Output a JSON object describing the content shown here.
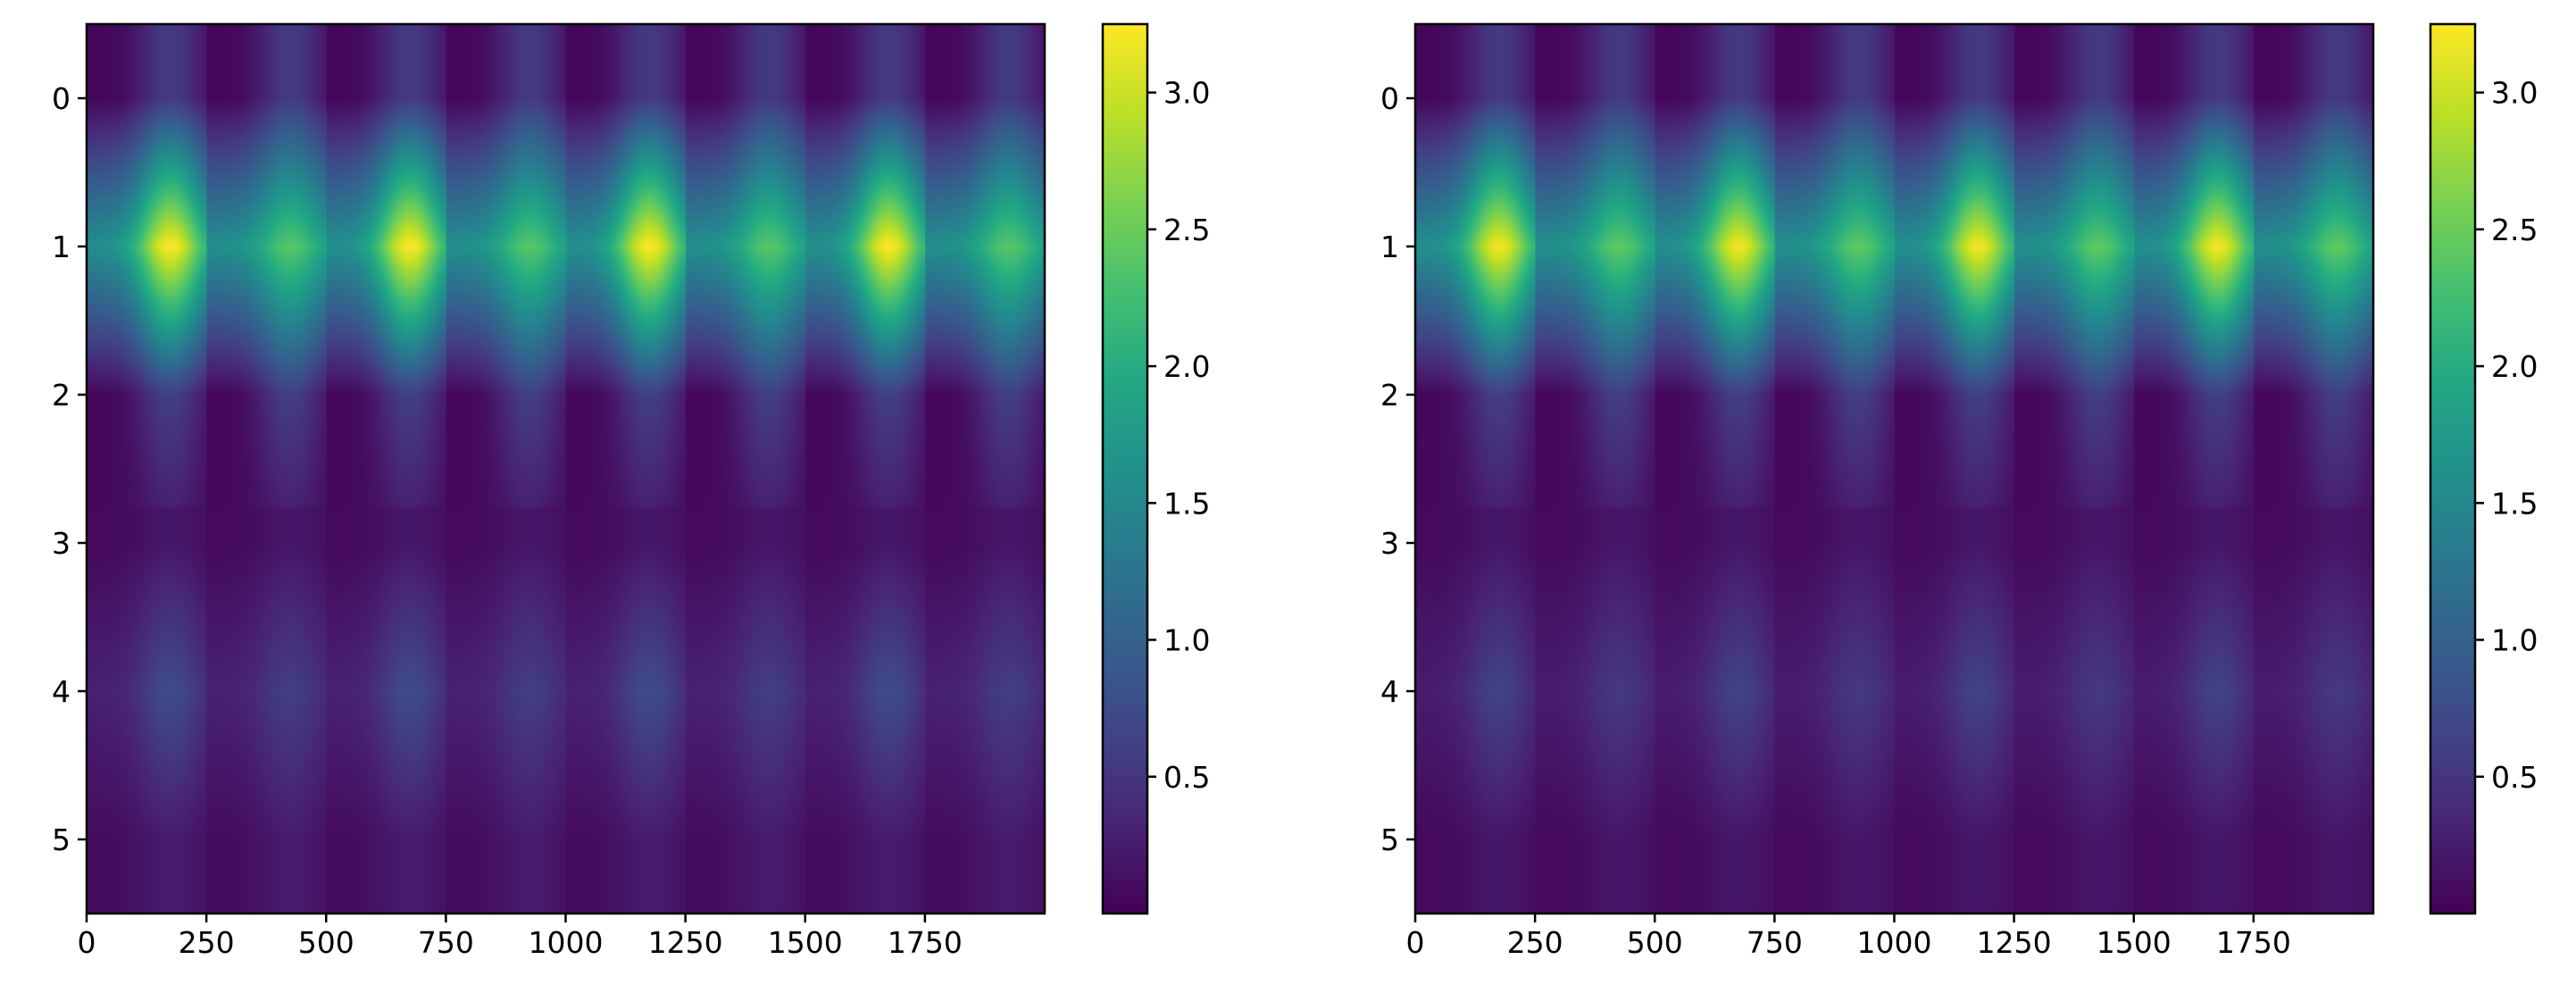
{
  "chart_data": [
    {
      "type": "heatmap",
      "title": "",
      "xlabel": "",
      "ylabel": "",
      "x_ticks": [
        "0",
        "250",
        "500",
        "750",
        "1000",
        "1250",
        "1500",
        "1750"
      ],
      "x_tick_values": [
        0,
        250,
        500,
        750,
        1000,
        1250,
        1500,
        1750
      ],
      "y_ticks": [
        "0",
        "1",
        "2",
        "3",
        "4",
        "5"
      ],
      "y_tick_values": [
        0,
        1,
        2,
        3,
        4,
        5
      ],
      "xlim": [
        0,
        2000
      ],
      "ylim": [
        5.5,
        -0.5
      ],
      "n_rows": 6,
      "n_cols": 2000,
      "colormap": "viridis",
      "colorbar": {
        "range": [
          0.0,
          3.25
        ],
        "ticks": [
          "0.5",
          "1.0",
          "1.5",
          "2.0",
          "2.5",
          "3.0"
        ],
        "tick_values": [
          0.5,
          1.0,
          1.5,
          2.0,
          2.5,
          3.0
        ]
      },
      "row_profile": [
        {
          "row": 0,
          "peak_values": [
            0.55,
            0.55
          ],
          "trough_value": 0.05
        },
        {
          "row": 1,
          "peak_values": [
            3.25,
            2.4
          ],
          "trough_value": 1.6
        },
        {
          "row": 2,
          "peak_values": [
            0.6,
            0.6
          ],
          "trough_value": 0.05
        },
        {
          "row": 3,
          "peak_values": [
            0.2,
            0.2
          ],
          "trough_value": 0.08
        },
        {
          "row": 4,
          "peak_values": [
            0.75,
            0.6
          ],
          "trough_value": 0.3
        },
        {
          "row": 5,
          "peak_values": [
            0.25,
            0.25
          ],
          "trough_value": 0.1
        }
      ],
      "period": 500,
      "segment_boundaries": [
        250,
        500,
        750,
        1000,
        1250,
        1500,
        1750
      ]
    },
    {
      "type": "heatmap",
      "title": "",
      "xlabel": "",
      "ylabel": "",
      "x_ticks": [
        "0",
        "250",
        "500",
        "750",
        "1000",
        "1250",
        "1500",
        "1750"
      ],
      "x_tick_values": [
        0,
        250,
        500,
        750,
        1000,
        1250,
        1500,
        1750
      ],
      "y_ticks": [
        "0",
        "1",
        "2",
        "3",
        "4",
        "5"
      ],
      "y_tick_values": [
        0,
        1,
        2,
        3,
        4,
        5
      ],
      "xlim": [
        0,
        2000
      ],
      "ylim": [
        5.5,
        -0.5
      ],
      "n_rows": 6,
      "n_cols": 2000,
      "colormap": "viridis",
      "colorbar": {
        "range": [
          0.0,
          3.25
        ],
        "ticks": [
          "0.5",
          "1.0",
          "1.5",
          "2.0",
          "2.5",
          "3.0"
        ],
        "tick_values": [
          0.5,
          1.0,
          1.5,
          2.0,
          2.5,
          3.0
        ]
      },
      "row_profile": [
        {
          "row": 0,
          "peak_values": [
            0.55,
            0.55
          ],
          "trough_value": 0.05
        },
        {
          "row": 1,
          "peak_values": [
            3.2,
            2.45
          ],
          "trough_value": 1.6
        },
        {
          "row": 2,
          "peak_values": [
            0.6,
            0.6
          ],
          "trough_value": 0.05
        },
        {
          "row": 3,
          "peak_values": [
            0.2,
            0.2
          ],
          "trough_value": 0.08
        },
        {
          "row": 4,
          "peak_values": [
            0.65,
            0.55
          ],
          "trough_value": 0.25
        },
        {
          "row": 5,
          "peak_values": [
            0.2,
            0.2
          ],
          "trough_value": 0.08
        }
      ],
      "period": 500,
      "segment_boundaries": [
        250,
        500,
        750,
        1000,
        1250,
        1500,
        1750
      ]
    }
  ]
}
